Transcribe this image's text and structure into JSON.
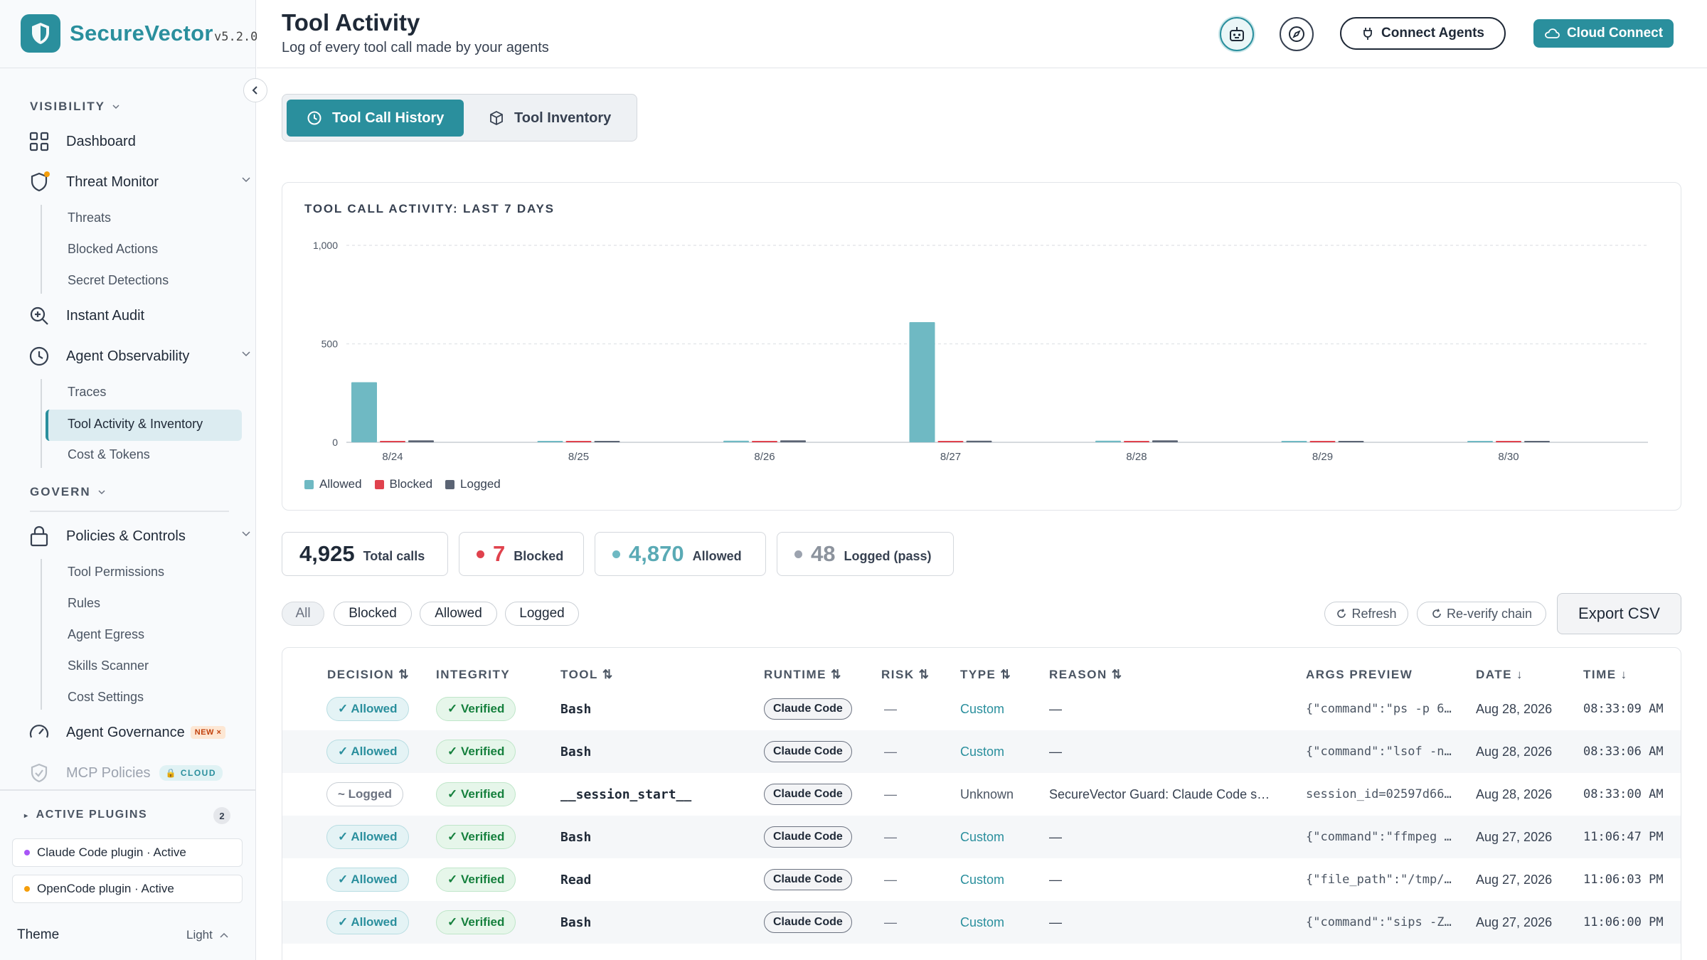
{
  "app": {
    "name": "SecureVector",
    "version": "v5.2.0"
  },
  "sidebar": {
    "visibility_label": "VISIBILITY",
    "govern_label": "GOVERN",
    "dashboard": "Dashboard",
    "threat_monitor": "Threat Monitor",
    "threat_sub": [
      "Threats",
      "Blocked Actions",
      "Secret Detections"
    ],
    "instant_audit": "Instant Audit",
    "agent_observability": "Agent Observability",
    "observability_sub": [
      "Traces",
      "Tool Activity & Inventory",
      "Cost & Tokens"
    ],
    "policies": "Policies & Controls",
    "policies_sub": [
      "Tool Permissions",
      "Rules",
      "Agent Egress",
      "Skills Scanner",
      "Cost Settings"
    ],
    "agent_governance": "Agent Governance",
    "new_badge": "NEW ×",
    "mcp_policies": "MCP Policies",
    "cloud_badge": "CLOUD",
    "active_plugins": "ACTIVE PLUGINS",
    "plugins_count": "2",
    "plugins": [
      {
        "label": "Claude Code plugin · Active",
        "color": "#a855f7"
      },
      {
        "label": "OpenCode plugin · Active",
        "color": "#f59e0b"
      }
    ],
    "theme_label": "Theme",
    "theme_value": "Light"
  },
  "header": {
    "title": "Tool Activity",
    "subtitle": "Log of every tool call made by your agents",
    "connect_agents": "Connect Agents",
    "cloud_connect": "Cloud Connect"
  },
  "tabs": {
    "history": "Tool Call History",
    "inventory": "Tool Inventory"
  },
  "colors": {
    "accent": "#2a8f9d",
    "allowed": "#6fb9c3",
    "blocked": "#e0424d",
    "logged": "#5b6474"
  },
  "chart_data": {
    "type": "bar",
    "title": "TOOL CALL ACTIVITY: LAST 7 DAYS",
    "categories": [
      "8/24",
      "8/25",
      "8/26",
      "8/27",
      "8/28",
      "8/29",
      "8/30"
    ],
    "series": [
      {
        "name": "Allowed",
        "values": [
          305,
          3,
          8,
          610,
          8,
          2,
          2
        ]
      },
      {
        "name": "Blocked",
        "values": [
          2,
          2,
          5,
          5,
          1,
          1,
          1
        ]
      },
      {
        "name": "Logged",
        "values": [
          10,
          2,
          10,
          8,
          10,
          1,
          1
        ]
      }
    ],
    "yticks": [
      "1,000",
      "500",
      "0"
    ],
    "ylim": [
      0,
      1000
    ],
    "grid": true,
    "legend_position": "bottom-left"
  },
  "stats": {
    "total": {
      "value": "4,925",
      "label": "Total calls"
    },
    "blocked": {
      "value": "7",
      "label": "Blocked"
    },
    "allowed": {
      "value": "4,870",
      "label": "Allowed"
    },
    "logged": {
      "value": "48",
      "label": "Logged (pass)"
    }
  },
  "filters": [
    "All",
    "Blocked",
    "Allowed",
    "Logged"
  ],
  "actions": {
    "refresh": "Refresh",
    "reverify": "Re-verify chain",
    "export": "Export CSV"
  },
  "table": {
    "headers": [
      "DECISION",
      "INTEGRITY",
      "TOOL",
      "RUNTIME",
      "RISK",
      "TYPE",
      "REASON",
      "ARGS PREVIEW",
      "DATE",
      "TIME"
    ],
    "rows": [
      {
        "decision": "✓ Allowed",
        "integrity": "✓ Verified",
        "tool": "Bash",
        "runtime": "Claude Code",
        "risk": "—",
        "type": "Custom",
        "reason": "—",
        "args": "{\"command\":\"ps -p 6…",
        "date": "Aug 28, 2026",
        "time": "08:33:09 AM"
      },
      {
        "decision": "✓ Allowed",
        "integrity": "✓ Verified",
        "tool": "Bash",
        "runtime": "Claude Code",
        "risk": "—",
        "type": "Custom",
        "reason": "—",
        "args": "{\"command\":\"lsof -n…",
        "date": "Aug 28, 2026",
        "time": "08:33:06 AM"
      },
      {
        "decision": "~ Logged",
        "integrity": "✓ Verified",
        "tool": "__session_start__",
        "runtime": "Claude Code",
        "risk": "—",
        "type": "Unknown",
        "reason": "SecureVector Guard: Claude Code s…",
        "args": "session_id=02597d66…",
        "date": "Aug 28, 2026",
        "time": "08:33:00 AM"
      },
      {
        "decision": "✓ Allowed",
        "integrity": "✓ Verified",
        "tool": "Bash",
        "runtime": "Claude Code",
        "risk": "—",
        "type": "Custom",
        "reason": "—",
        "args": "{\"command\":\"ffmpeg …",
        "date": "Aug 27, 2026",
        "time": "11:06:47 PM"
      },
      {
        "decision": "✓ Allowed",
        "integrity": "✓ Verified",
        "tool": "Read",
        "runtime": "Claude Code",
        "risk": "—",
        "type": "Custom",
        "reason": "—",
        "args": "{\"file_path\":\"/tmp/…",
        "date": "Aug 27, 2026",
        "time": "11:06:03 PM"
      },
      {
        "decision": "✓ Allowed",
        "integrity": "✓ Verified",
        "tool": "Bash",
        "runtime": "Claude Code",
        "risk": "—",
        "type": "Custom",
        "reason": "—",
        "args": "{\"command\":\"sips -Z…",
        "date": "Aug 27, 2026",
        "time": "11:06:00 PM"
      }
    ]
  }
}
